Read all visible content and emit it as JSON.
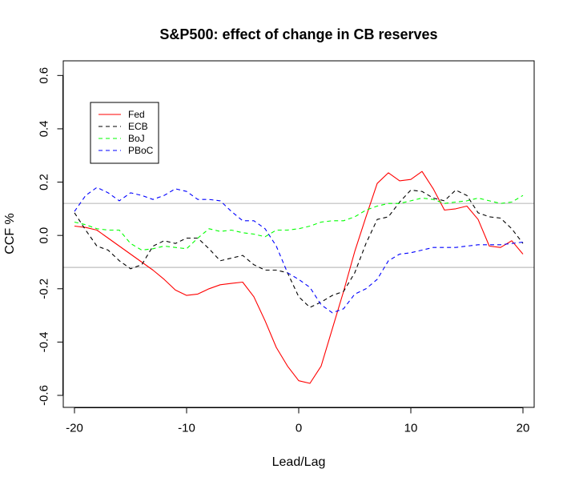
{
  "chart_data": {
    "type": "line",
    "title": "S&P500: effect of change in CB reserves",
    "xlabel": "Lead/Lag",
    "ylabel": "CCF %",
    "xlim": [
      -21,
      21
    ],
    "ylim": [
      -0.645,
      0.655
    ],
    "x_ticks": [
      -20,
      -10,
      0,
      10,
      20
    ],
    "x_tick_labels": [
      "-20",
      "-10",
      "0",
      "10",
      "20"
    ],
    "y_ticks": [
      -0.6,
      -0.4,
      -0.2,
      0.0,
      0.2,
      0.4,
      0.6
    ],
    "y_tick_labels": [
      "-0.6",
      "-0.4",
      "-0.2",
      "0.0",
      "0.2",
      "0.4",
      "0.6"
    ],
    "reference_lines": [
      0.12,
      -0.12
    ],
    "reference_line_color": "#bebebe",
    "grid": false,
    "legend_position": "top-left",
    "x": [
      -20,
      -19,
      -18,
      -17,
      -16,
      -15,
      -14,
      -13,
      -12,
      -11,
      -10,
      -9,
      -8,
      -7,
      -6,
      -5,
      -4,
      -3,
      -2,
      -1,
      0,
      1,
      2,
      3,
      4,
      5,
      6,
      7,
      8,
      9,
      10,
      11,
      12,
      13,
      14,
      15,
      16,
      17,
      18,
      19,
      20
    ],
    "series": [
      {
        "name": "Fed",
        "color": "#ff0000",
        "dash": "solid",
        "values": [
          0.035,
          0.03,
          0.02,
          -0.01,
          -0.04,
          -0.07,
          -0.1,
          -0.13,
          -0.165,
          -0.205,
          -0.225,
          -0.22,
          -0.2,
          -0.185,
          -0.18,
          -0.175,
          -0.23,
          -0.32,
          -0.42,
          -0.49,
          -0.545,
          -0.555,
          -0.49,
          -0.35,
          -0.21,
          -0.06,
          0.07,
          0.195,
          0.235,
          0.205,
          0.21,
          0.24,
          0.175,
          0.095,
          0.1,
          0.11,
          0.06,
          -0.04,
          -0.045,
          -0.02,
          -0.07
        ]
      },
      {
        "name": "ECB",
        "color": "#000000",
        "dash": "dashed",
        "values": [
          0.085,
          0.02,
          -0.04,
          -0.055,
          -0.095,
          -0.125,
          -0.11,
          -0.04,
          -0.02,
          -0.03,
          -0.01,
          -0.01,
          -0.05,
          -0.095,
          -0.085,
          -0.075,
          -0.11,
          -0.13,
          -0.13,
          -0.14,
          -0.23,
          -0.27,
          -0.25,
          -0.225,
          -0.21,
          -0.14,
          -0.03,
          0.06,
          0.07,
          0.125,
          0.17,
          0.165,
          0.14,
          0.13,
          0.17,
          0.15,
          0.085,
          0.07,
          0.065,
          0.025,
          -0.03
        ]
      },
      {
        "name": "BoJ",
        "color": "#00ff00",
        "dash": "dashed",
        "values": [
          0.05,
          0.04,
          0.025,
          0.02,
          0.02,
          -0.03,
          -0.055,
          -0.05,
          -0.04,
          -0.045,
          -0.05,
          -0.01,
          0.025,
          0.015,
          0.02,
          0.01,
          0.005,
          -0.005,
          0.02,
          0.02,
          0.025,
          0.035,
          0.05,
          0.055,
          0.055,
          0.07,
          0.095,
          0.11,
          0.12,
          0.12,
          0.13,
          0.14,
          0.135,
          0.12,
          0.125,
          0.13,
          0.14,
          0.13,
          0.12,
          0.125,
          0.15
        ]
      },
      {
        "name": "PBoC",
        "color": "#0000ff",
        "dash": "dashed",
        "values": [
          0.09,
          0.15,
          0.18,
          0.16,
          0.13,
          0.16,
          0.15,
          0.135,
          0.15,
          0.175,
          0.165,
          0.135,
          0.135,
          0.13,
          0.09,
          0.055,
          0.055,
          0.025,
          -0.04,
          -0.14,
          -0.165,
          -0.195,
          -0.26,
          -0.29,
          -0.275,
          -0.22,
          -0.2,
          -0.165,
          -0.095,
          -0.07,
          -0.065,
          -0.055,
          -0.045,
          -0.045,
          -0.045,
          -0.04,
          -0.035,
          -0.035,
          -0.035,
          -0.03,
          -0.025
        ]
      }
    ]
  }
}
